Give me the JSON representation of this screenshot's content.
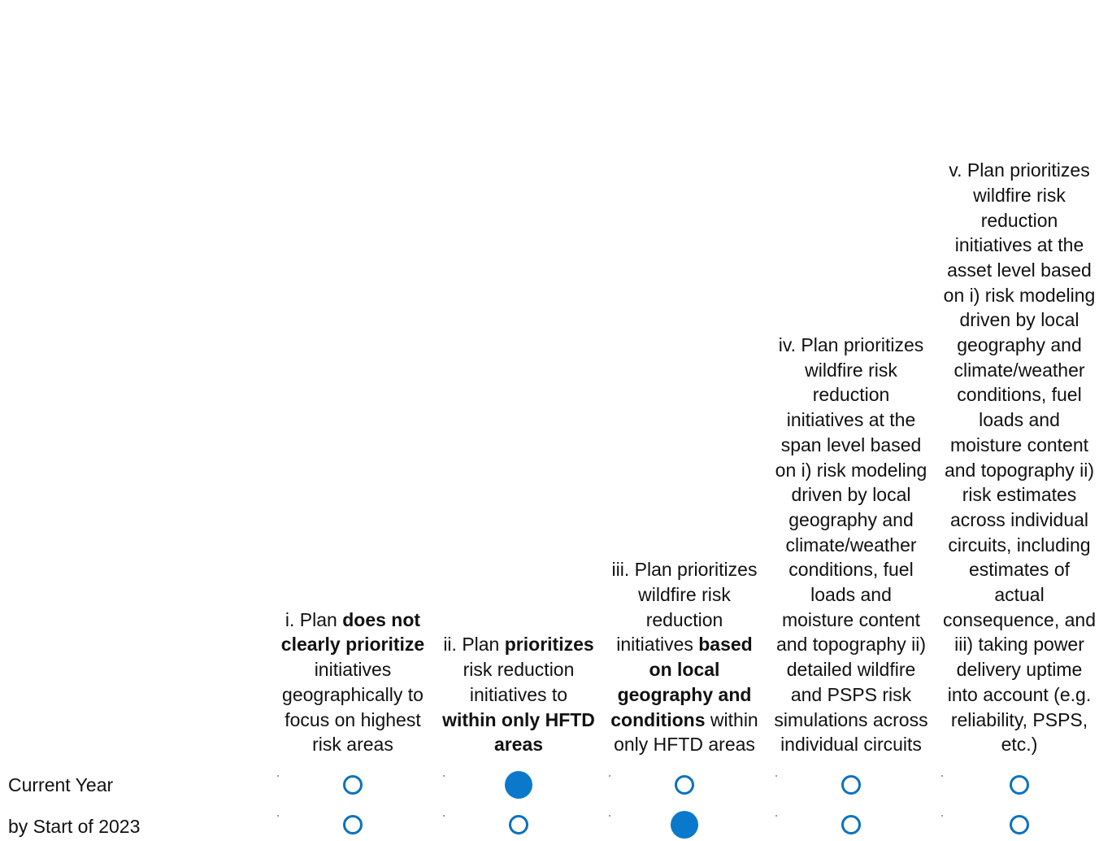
{
  "columns": [
    {
      "parts": [
        [
          "i. Plan ",
          false
        ],
        [
          "does not clearly prioritize",
          true
        ],
        [
          " initiatives geographically to focus on highest risk areas",
          false
        ]
      ]
    },
    {
      "parts": [
        [
          "ii. Plan ",
          false
        ],
        [
          "prioritizes",
          true
        ],
        [
          " risk reduction initiatives to ",
          false
        ],
        [
          "within only HFTD areas",
          true
        ]
      ]
    },
    {
      "parts": [
        [
          "iii. Plan prioritizes wildfire risk reduction initiatives ",
          false
        ],
        [
          "based on local geography and conditions",
          true
        ],
        [
          " within only HFTD areas",
          false
        ]
      ]
    },
    {
      "parts": [
        [
          "iv. Plan prioritizes wildfire risk reduction initiatives at the span level based on i) risk modeling driven by local geography and climate/weather conditions, fuel loads and moisture content and topography ii) detailed wildfire and PSPS risk simulations across individual circuits",
          false
        ]
      ]
    },
    {
      "parts": [
        [
          "v. Plan prioritizes wildfire risk reduction initiatives at the asset level based on i) risk modeling driven by local geography and climate/weather conditions, fuel loads and moisture content and topography ii) risk estimates across individual circuits, including estimates of actual consequence, and iii) taking power delivery uptime into account (e.g. reliability, PSPS, etc.)",
          false
        ]
      ]
    }
  ],
  "rows": [
    {
      "label": "Current Year",
      "selected_index": 1
    },
    {
      "label": "by Start of 2023",
      "selected_index": 2
    }
  ],
  "colors": {
    "radio_border": "#0a72c0",
    "radio_fill": "#0a79cc"
  }
}
